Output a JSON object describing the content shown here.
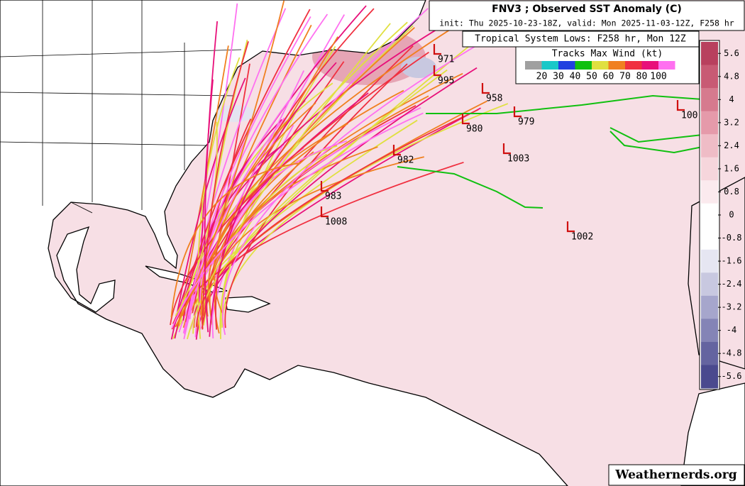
{
  "header": {
    "title": "FNV3 ; Observed SST Anomaly (C)",
    "subtitle": "init: Thu 2025-10-23-18Z, valid: Mon 2025-11-03-12Z, F258 hr"
  },
  "lows_title": "Tropical System Lows: F258 hr, Mon 12Z",
  "legend": {
    "title": "Tracks Max Wind (kt)",
    "labels": [
      "20",
      "30",
      "40",
      "50",
      "60",
      "70",
      "80",
      "100"
    ],
    "colors": [
      "#a0a0a0",
      "#19c8c8",
      "#2040e0",
      "#10c010",
      "#e0e040",
      "#f08020",
      "#f03040",
      "#e8107a",
      "#ff70f0"
    ]
  },
  "colorbar": {
    "ticks": [
      5.6,
      4.8,
      4,
      3.2,
      2.4,
      1.6,
      0.8,
      0,
      -0.8,
      -1.6,
      -2.4,
      -3.2,
      -4,
      -4.8,
      -5.6
    ],
    "colors": [
      "#b8405e",
      "#c85a74",
      "#d67a8e",
      "#e59aaa",
      "#efbcc6",
      "#f6d6dc",
      "#fbeaee",
      "#ffffff",
      "#ffffff",
      "#e6e6f2",
      "#c8c8e0",
      "#a6a6cc",
      "#8484b6",
      "#6464a0",
      "#4a4a8e"
    ]
  },
  "lows": [
    "971",
    "995",
    "958",
    "979",
    "980",
    "1003",
    "982",
    "983",
    "1008",
    "1002",
    "100"
  ],
  "watermark": "Weathernerds.org"
}
